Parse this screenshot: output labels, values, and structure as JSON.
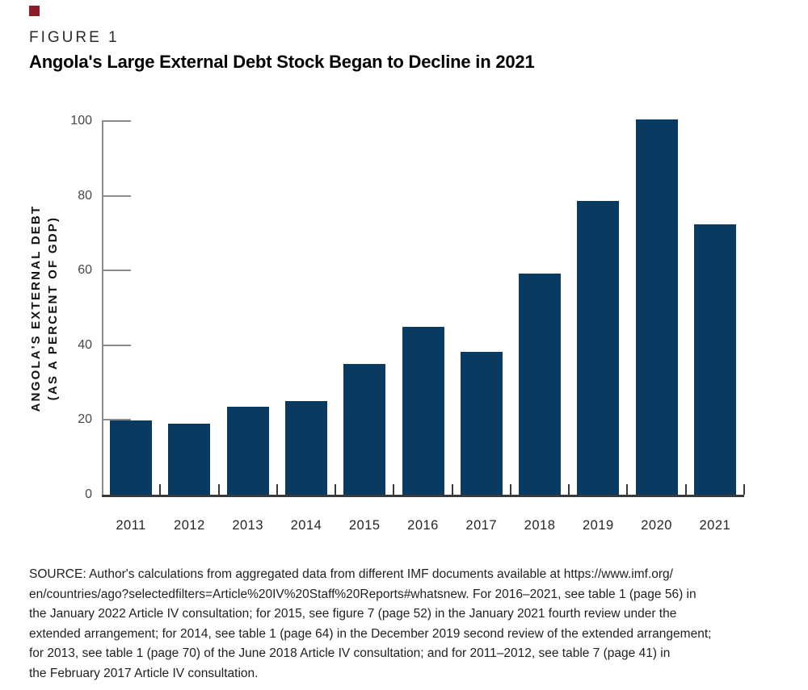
{
  "header": {
    "figure_label": "FIGURE 1",
    "title": "Angola's Large External Debt Stock Began to Decline in 2021"
  },
  "colors": {
    "brand_square": "#8c1d26",
    "bar": "#083a62",
    "y_axis": "#8c8c8c",
    "x_axis": "#3a3a3a"
  },
  "chart_data": {
    "type": "bar",
    "title": "Angola's Large External Debt Stock Began to Decline in 2021",
    "categories": [
      "2011",
      "2012",
      "2013",
      "2014",
      "2015",
      "2016",
      "2017",
      "2018",
      "2019",
      "2020",
      "2021"
    ],
    "values": [
      19.8,
      18.9,
      23.5,
      25.0,
      35.0,
      45.0,
      38.2,
      59.2,
      78.6,
      100.5,
      72.4
    ],
    "xlabel": "",
    "ylabel": "ANGOLA'S EXTERNAL DEBT (AS A PERCENT OF GDP)",
    "ylabel_lines": [
      "ANGOLA'S EXTERNAL DEBT",
      "(AS A PERCENT OF GDP)"
    ],
    "ylim": [
      0,
      100
    ],
    "yticks": [
      0,
      20,
      40,
      60,
      80,
      100
    ],
    "grid": false,
    "legend": false,
    "bar_color": "#083a62"
  },
  "source": {
    "lines": [
      "SOURCE: Author's calculations from aggregated data from different IMF documents available at https://www.imf.org/",
      "en/countries/ago?selectedfilters=Article%20IV%20Staff%20Reports#whatsnew. For 2016–2021, see table 1 (page 56) in",
      "the January 2022 Article IV consultation; for 2015, see figure 7 (page 52) in the January 2021 fourth review under the",
      "extended arrangement; for 2014, see table 1 (page 64) in the December 2019 second review of the extended arrangement;",
      "for 2013, see table 1 (page 70) of the June 2018 Article IV consultation; and for 2011–2012, see table 7 (page 41) in",
      "the February 2017 Article IV consultation."
    ]
  }
}
